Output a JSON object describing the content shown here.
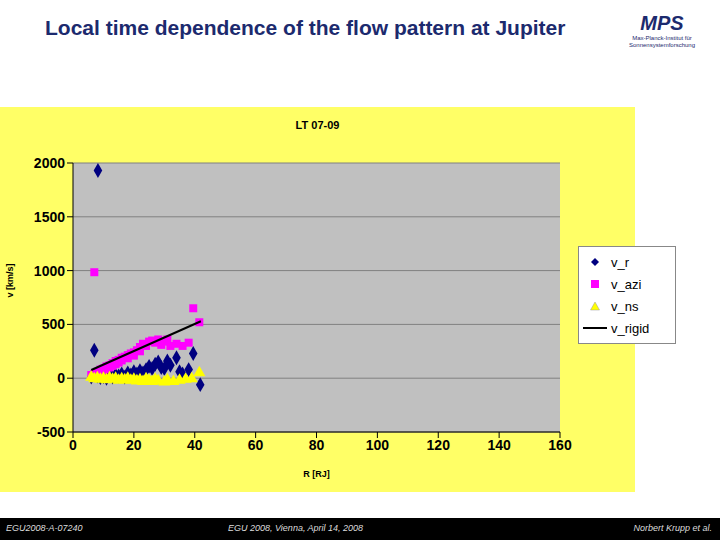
{
  "slide": {
    "title": "Local time dependence of the flow pattern at Jupiter",
    "logo": {
      "text": "MPS",
      "subtext": "Max-Planck-Institut für Sonnensystemforschung"
    },
    "footer": {
      "left": "EGU2008-A-07240",
      "center": "EGU 2008, Vienna, April 14, 2008",
      "right": "Norbert Krupp et al."
    }
  },
  "chart_data": {
    "type": "scatter",
    "title": "LT 07-09",
    "x_label": "R [RJ]",
    "y_label": "v [km/s]",
    "xlim": [
      0,
      160
    ],
    "xticks": [
      0,
      20,
      40,
      60,
      80,
      100,
      120,
      140,
      160
    ],
    "ylim": [
      -500,
      2000
    ],
    "yticks": [
      -500,
      0,
      500,
      1000,
      1500,
      2000
    ],
    "grid": true,
    "legend": "right",
    "series": [
      {
        "name": "v_r",
        "color": "#000080",
        "marker": "diamond",
        "x": [
          6,
          7,
          8.2,
          8,
          9,
          10,
          11,
          12,
          13,
          14,
          15,
          16,
          17,
          18,
          19,
          20,
          21,
          22,
          23,
          24,
          25,
          26,
          27,
          28,
          29,
          30,
          31,
          32,
          34,
          35,
          36,
          38,
          39.5,
          41.8
        ],
        "values": [
          10,
          260,
          1930,
          20,
          5,
          15,
          0,
          25,
          10,
          30,
          20,
          40,
          10,
          50,
          30,
          60,
          40,
          70,
          50,
          80,
          110,
          90,
          130,
          150,
          100,
          90,
          160,
          120,
          190,
          60,
          40,
          80,
          230,
          -60
        ]
      },
      {
        "name": "v_azi",
        "color": "#ff00ff",
        "marker": "square",
        "x": [
          6,
          7,
          7,
          8,
          8,
          9,
          9,
          10,
          10,
          11,
          11,
          12,
          12,
          13,
          13,
          14,
          14,
          15,
          15,
          16,
          16,
          17,
          18,
          18,
          19,
          20,
          20,
          21,
          22,
          22,
          23,
          24,
          25,
          26,
          27,
          28,
          29,
          30,
          31,
          32,
          34,
          36,
          38,
          39.5,
          41.5
        ],
        "values": [
          30,
          985,
          40,
          60,
          45,
          80,
          55,
          90,
          70,
          110,
          85,
          120,
          100,
          140,
          115,
          160,
          130,
          170,
          145,
          190,
          165,
          200,
          215,
          185,
          230,
          240,
          210,
          260,
          290,
          250,
          320,
          300,
          340,
          350,
          330,
          360,
          310,
          340,
          360,
          300,
          320,
          300,
          330,
          650,
          520
        ]
      },
      {
        "name": "v_ns",
        "color": "#ffff00",
        "marker": "triangle",
        "x": [
          6,
          7,
          8,
          9,
          10,
          11,
          12,
          13,
          14,
          15,
          16,
          17,
          18,
          19,
          20,
          21,
          22,
          23,
          24,
          25,
          26,
          27,
          28,
          30,
          31,
          33,
          35,
          37,
          39,
          41.5
        ],
        "values": [
          10,
          -5,
          5,
          -10,
          0,
          -15,
          5,
          -10,
          0,
          -20,
          -5,
          -15,
          0,
          -20,
          -10,
          -25,
          -15,
          -30,
          -5,
          -20,
          -30,
          -10,
          -25,
          -35,
          -15,
          -30,
          -20,
          -10,
          -5,
          50
        ]
      },
      {
        "name": "v_rigid",
        "color": "#000000",
        "marker": "none",
        "line_style": "solid",
        "x": [
          6,
          42
        ],
        "values": [
          76,
          529
        ]
      }
    ]
  }
}
